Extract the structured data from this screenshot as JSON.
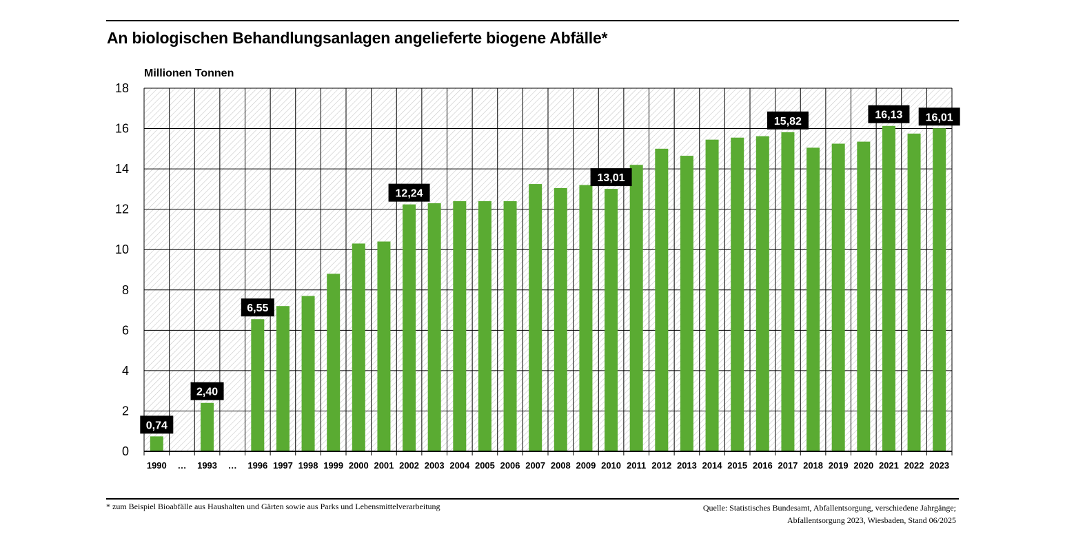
{
  "header": {
    "title": "An biologischen Behandlungsanlagen angelieferte biogene Abfälle*"
  },
  "footer": {
    "footnote": "* zum Beispiel Bioabfälle aus Haushalten und Gärten sowie aus Parks und Lebensmittelverarbeitung",
    "source_line1": "Quelle: Statistisches Bundesamt, Abfallentsorgung, verschiedene Jahrgänge;",
    "source_line2": "Abfallentsorgung 2023, Wiesbaden, Stand 06/2025"
  },
  "colors": {
    "bar": "#5aab32",
    "label_bg": "#000000",
    "label_text": "#ffffff",
    "grid": "#000000",
    "hatch": "#c8c8c8"
  },
  "chart_data": {
    "type": "bar",
    "ylabel": "Millionen Tonnen",
    "xlabel": "",
    "ylim": [
      0,
      18
    ],
    "yticks": [
      0,
      2,
      4,
      6,
      8,
      10,
      12,
      14,
      16,
      18
    ],
    "grid": true,
    "categories": [
      "1990",
      "…",
      "1993",
      "…",
      "1996",
      "1997",
      "1998",
      "1999",
      "2000",
      "2001",
      "2002",
      "2003",
      "2004",
      "2005",
      "2006",
      "2007",
      "2008",
      "2009",
      "2010",
      "2011",
      "2012",
      "2013",
      "2014",
      "2015",
      "2016",
      "2017",
      "2018",
      "2019",
      "2020",
      "2021",
      "2022",
      "2023"
    ],
    "values": [
      0.74,
      null,
      2.4,
      null,
      6.55,
      7.2,
      7.7,
      8.8,
      10.3,
      10.4,
      12.24,
      12.3,
      12.4,
      12.4,
      12.4,
      13.25,
      13.05,
      13.2,
      13.01,
      14.2,
      15.0,
      14.65,
      15.45,
      15.55,
      15.62,
      15.82,
      15.05,
      15.25,
      15.35,
      16.13,
      15.75,
      16.01
    ],
    "data_labels": [
      {
        "index": 0,
        "text": "0,74"
      },
      {
        "index": 2,
        "text": "2,40"
      },
      {
        "index": 4,
        "text": "6,55"
      },
      {
        "index": 10,
        "text": "12,24"
      },
      {
        "index": 18,
        "text": "13,01"
      },
      {
        "index": 25,
        "text": "15,82"
      },
      {
        "index": 29,
        "text": "16,13"
      },
      {
        "index": 31,
        "text": "16,01"
      }
    ]
  }
}
